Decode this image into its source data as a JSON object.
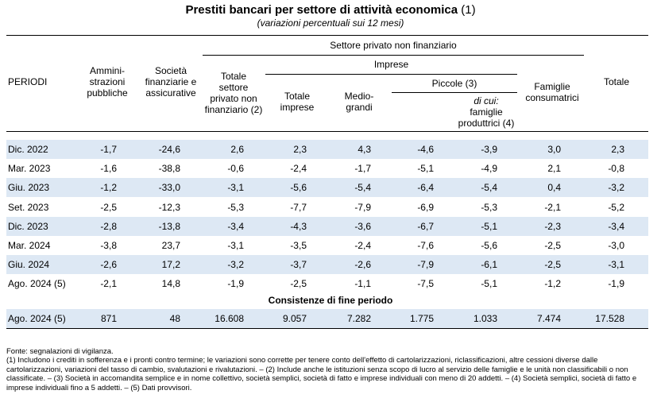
{
  "title_main": "Prestiti bancari per settore di attività economica",
  "title_note": " (1)",
  "subtitle": "(variazioni percentuali sui 12 mesi)",
  "headers": {
    "periodi": "PERIODI",
    "amm": "Ammini-\nstrazioni\npubbliche",
    "soc": "Società\nfinanziarie e\nassicurative",
    "spnf_group": "Settore privato non finanziario",
    "tot_spnf": "Totale\nsettore\nprivato non\nfinanziario (2)",
    "imprese": "Imprese",
    "tot_imp": "Totale\nimprese",
    "medio": "Medio-\ngrandi",
    "piccole": "Piccole (3)",
    "dicui_label": "di cui:",
    "dicui_rest": "\nfamiglie\nproduttrici (4)",
    "fam": "Famiglie\nconsumatrici",
    "totale": "Totale"
  },
  "rows": [
    {
      "period": "Dic. 2022",
      "values": [
        "-1,7",
        "-24,6",
        "2,6",
        "2,3",
        "4,3",
        "-4,6",
        "-3,9",
        "3,0",
        "2,3"
      ]
    },
    {
      "period": "Mar. 2023",
      "values": [
        "-1,6",
        "-38,8",
        "-0,6",
        "-2,4",
        "-1,7",
        "-5,1",
        "-4,9",
        "2,1",
        "-0,8"
      ]
    },
    {
      "period": "Giu. 2023",
      "values": [
        "-1,2",
        "-33,0",
        "-3,1",
        "-5,6",
        "-5,4",
        "-6,4",
        "-5,4",
        "0,4",
        "-3,2"
      ]
    },
    {
      "period": "Set. 2023",
      "values": [
        "-2,5",
        "-12,3",
        "-5,3",
        "-7,7",
        "-7,9",
        "-6,9",
        "-5,3",
        "-2,1",
        "-5,2"
      ]
    },
    {
      "period": "Dic. 2023",
      "values": [
        "-2,8",
        "-13,8",
        "-3,4",
        "-4,3",
        "-3,6",
        "-6,7",
        "-5,1",
        "-2,3",
        "-3,4"
      ]
    },
    {
      "period": "Mar. 2024",
      "values": [
        "-3,8",
        "23,7",
        "-3,1",
        "-3,5",
        "-2,4",
        "-7,6",
        "-5,6",
        "-2,5",
        "-3,0"
      ]
    },
    {
      "period": "Giu. 2024",
      "values": [
        "-2,6",
        "17,2",
        "-3,2",
        "-3,7",
        "-2,6",
        "-7,9",
        "-6,1",
        "-2,5",
        "-3,1"
      ]
    },
    {
      "period": "Ago. 2024 (5)",
      "values": [
        "-2,1",
        "14,8",
        "-1,9",
        "-2,5",
        "-1,1",
        "-7,5",
        "-5,1",
        "-1,2",
        "-1,9"
      ]
    }
  ],
  "section_label": "Consistenze di fine periodo",
  "stock_row": {
    "period": "Ago. 2024 (5)",
    "values": [
      "871",
      "48",
      "16.608",
      "9.057",
      "7.282",
      "1.775",
      "1.033",
      "7.474",
      "17.528"
    ]
  },
  "footnotes": "Fonte: segnalazioni di vigilanza.\n(1) Includono i crediti in sofferenza e i pronti contro termine; le variazioni sono corrette per tenere conto dell'effetto di cartolarizzazioni, riclassificazioni, altre cessioni diverse dalle cartolarizzazioni, variazioni del tasso di cambio, svalutazioni e rivalutazioni. – (2) Include anche le istituzioni senza scopo di lucro al servizio delle famiglie e le unità non classificabili o non classificate. – (3) Società in accomandita semplice e in nome collettivo, società semplici, società di fatto e imprese individuali con meno di 20 addetti. – (4) Società semplici, società di fatto e imprese individuali fino a 5 addetti. – (5) Dati provvisori.",
  "colors": {
    "shade": "#dde8f4"
  }
}
